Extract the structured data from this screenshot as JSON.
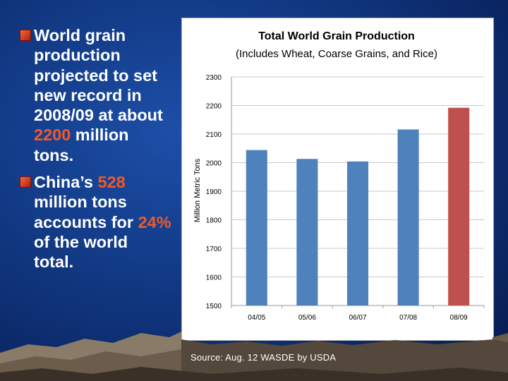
{
  "slide": {
    "bullet1_parts": [
      "World grain production projected to set new record in 2008/09 at about ",
      "2200",
      " million tons."
    ],
    "bullet2_parts": [
      "China’s ",
      "528",
      " million tons accounts for ",
      "24%",
      " of the world total."
    ],
    "source": "Source: Aug. 12 WASDE by USDA"
  },
  "chart_data": {
    "type": "bar",
    "title": "Total World Grain Production",
    "subtitle": "(Includes Wheat, Coarse Grains, and Rice)",
    "ylabel": "Million Metric Tons",
    "xlabel": "",
    "categories": [
      "04/05",
      "05/06",
      "06/07",
      "07/08",
      "08/09"
    ],
    "values": [
      2044,
      2013,
      2004,
      2116,
      2192
    ],
    "bar_colors": [
      "#4f81bd",
      "#4f81bd",
      "#4f81bd",
      "#4f81bd",
      "#c0504d"
    ],
    "yticks": [
      1500,
      1600,
      1700,
      1800,
      1900,
      2000,
      2100,
      2200,
      2300
    ],
    "ylim": [
      1500,
      2300
    ],
    "grid": true,
    "legend": "none"
  }
}
